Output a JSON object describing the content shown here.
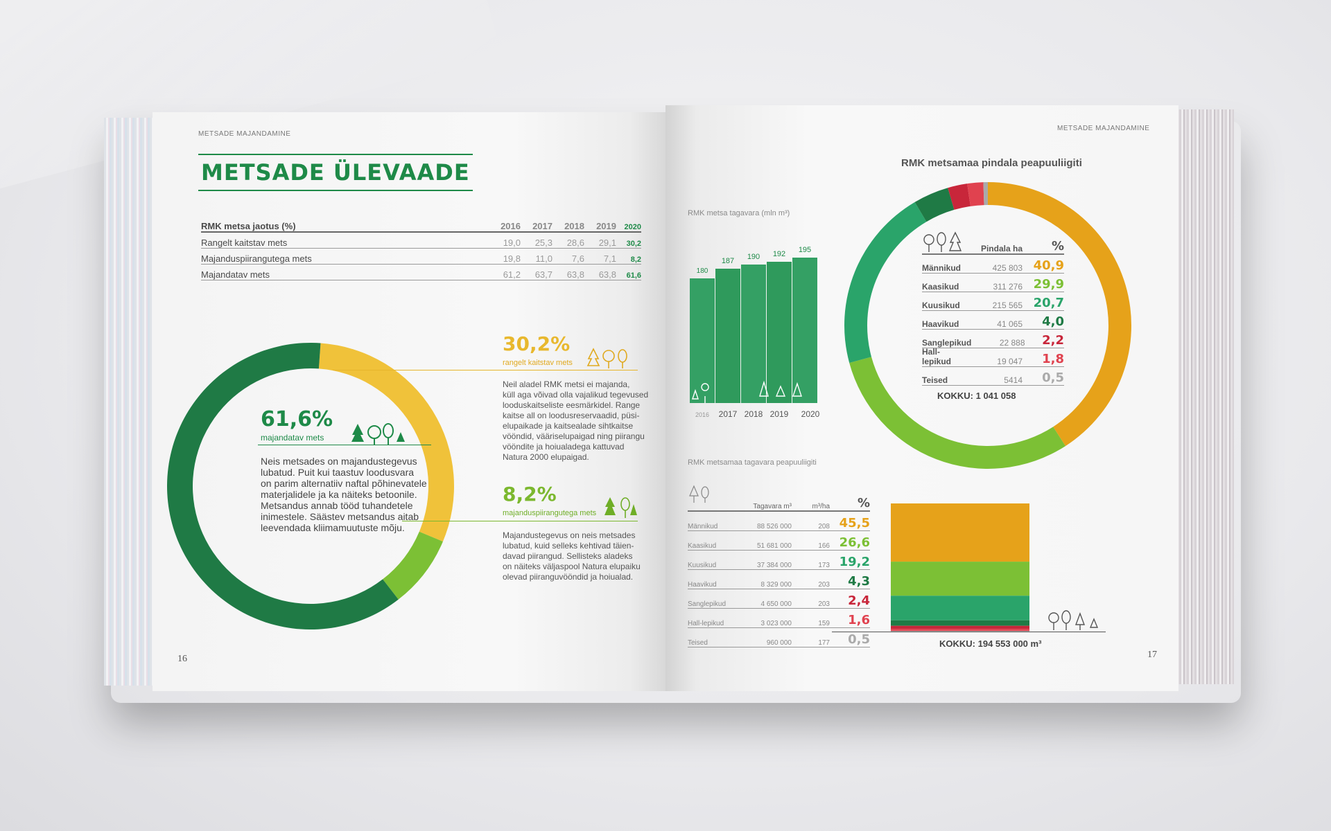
{
  "colors": {
    "dark_green": "#1f7a45",
    "green": "#2ea560",
    "teal": "#2aa46a",
    "light_green": "#7cc035",
    "yellow": "#f0c23a",
    "orange": "#e6a21a",
    "red": "#d22b3a",
    "gray": "#aaaaaa"
  },
  "left_page": {
    "running_head": "METSADE MAJANDAMINE",
    "title": "METSADE ÜLEVAADE",
    "page_number": "16",
    "distribution_table": {
      "header": "RMK metsa jaotus (%)",
      "years": [
        "2016",
        "2017",
        "2018",
        "2019",
        "2020"
      ],
      "rows": [
        {
          "label": "Rangelt kaitstav mets",
          "values": [
            "19,0",
            "25,3",
            "28,6",
            "29,1",
            "30,2"
          ]
        },
        {
          "label": "Majanduspiirangutega mets",
          "values": [
            "19,8",
            "11,0",
            "7,6",
            "7,1",
            "8,2"
          ]
        },
        {
          "label": "Majandatav mets",
          "values": [
            "61,2",
            "63,7",
            "63,8",
            "63,8",
            "61,6"
          ]
        }
      ]
    },
    "managed": {
      "pct": "61,6%",
      "label": "majandatav mets",
      "value": 61.6,
      "text": [
        "Neis metsades on majandustegevus",
        "lubatud. Puit kui taastuv loodusvara",
        "on parim alternatiiv naftal põhinevatele",
        "materjalidele ja ka näiteks betoonile.",
        "Metsandus annab tööd tuhandetele",
        "inimestele. Säästev metsandus aitab",
        "leevendada kliimamuutuste mõju."
      ]
    },
    "protected": {
      "pct": "30,2%",
      "label": "rangelt kaitstav mets",
      "value": 30.2,
      "text": [
        "Neil aladel RMK metsi ei majanda,",
        "küll aga võivad olla vajalikud tegevused",
        "looduskaitseliste eesmärkidel. Range",
        "kaitse all on loodusreservaadid, püsi-",
        "elupaikade ja kaitsealade sihtkaitse",
        "vööndid, vääriselupaigad ning piirangu",
        "vööndite ja hoiualadega kattuvad",
        "Natura 2000 elupaigad."
      ]
    },
    "restricted": {
      "pct": "8,2%",
      "label": "majanduspiirangutega mets",
      "value": 8.2,
      "text": [
        "Majandustegevus on neis metsades",
        "lubatud, kuid selleks kehtivad täien-",
        "davad piirangud. Sellisteks aladeks",
        "on näiteks väljaspool Natura elupaiku",
        "olevad piiranguvööndid ja hoiualad."
      ]
    }
  },
  "right_page": {
    "running_head": "METSADE MAJANDAMINE",
    "page_number": "17",
    "stock_chart": {
      "caption": "RMK metsa tagavara (mln m³)",
      "years": [
        "2016",
        "2017",
        "2018",
        "2019",
        "2020"
      ],
      "values": [
        180,
        187,
        190,
        192,
        195
      ],
      "value_labels": [
        "180",
        "187",
        "190",
        "192",
        "195"
      ]
    },
    "area_pie": {
      "title": "RMK metsamaa pindala peapuuliigiti",
      "col_area": "Pindala ha",
      "col_pct": "%",
      "rows": [
        {
          "name": "Männikud",
          "area": "425 803",
          "pct": "40,9",
          "value": 40.9,
          "color": "#e6a21a"
        },
        {
          "name": "Kaasikud",
          "area": "311 276",
          "pct": "29,9",
          "value": 29.9,
          "color": "#7cc035"
        },
        {
          "name": "Kuusikud",
          "area": "215 565",
          "pct": "20,7",
          "value": 20.7,
          "color": "#2aa46a"
        },
        {
          "name": "Haavikud",
          "area": "41 065",
          "pct": "4,0",
          "value": 4.0,
          "color": "#1f7a45"
        },
        {
          "name": "Sanglepikud",
          "area": "22 888",
          "pct": "2,2",
          "value": 2.2,
          "color": "#c8263a"
        },
        {
          "name": "Hall-lepikud",
          "area": "19 047",
          "pct": "1,8",
          "value": 1.8,
          "color": "#e0424f"
        },
        {
          "name": "Teised",
          "area": "5414",
          "pct": "0,5",
          "value": 0.5,
          "color": "#aaaaaa"
        }
      ],
      "total": "KOKKU: 1 041 058"
    },
    "stock_by_species": {
      "caption": "RMK metsamaa tagavara peapuuliigiti",
      "col_stock": "Tagavara m³",
      "col_per_ha": "m³/ha",
      "col_pct": "%",
      "rows": [
        {
          "name": "Männikud",
          "stock": "88 526 000",
          "per_ha": "208",
          "pct": "45,5",
          "value": 45.5,
          "color": "#e6a21a"
        },
        {
          "name": "Kaasikud",
          "stock": "51 681 000",
          "per_ha": "166",
          "pct": "26,6",
          "value": 26.6,
          "color": "#7cc035"
        },
        {
          "name": "Kuusikud",
          "stock": "37 384 000",
          "per_ha": "173",
          "pct": "19,2",
          "value": 19.2,
          "color": "#2aa46a"
        },
        {
          "name": "Haavikud",
          "stock": "8 329 000",
          "per_ha": "203",
          "pct": "4,3",
          "value": 4.3,
          "color": "#1f7a45"
        },
        {
          "name": "Sanglepikud",
          "stock": "4 650 000",
          "per_ha": "203",
          "pct": "2,4",
          "value": 2.4,
          "color": "#c8263a"
        },
        {
          "name": "Hall-lepikud",
          "stock": "3 023 000",
          "per_ha": "159",
          "pct": "1,6",
          "value": 1.6,
          "color": "#e0424f"
        },
        {
          "name": "Teised",
          "stock": "960 000",
          "per_ha": "177",
          "pct": "0,5",
          "value": 0.5,
          "color": "#aaaaaa"
        }
      ],
      "total": "KOKKU: 194 553 000 m³"
    }
  }
}
